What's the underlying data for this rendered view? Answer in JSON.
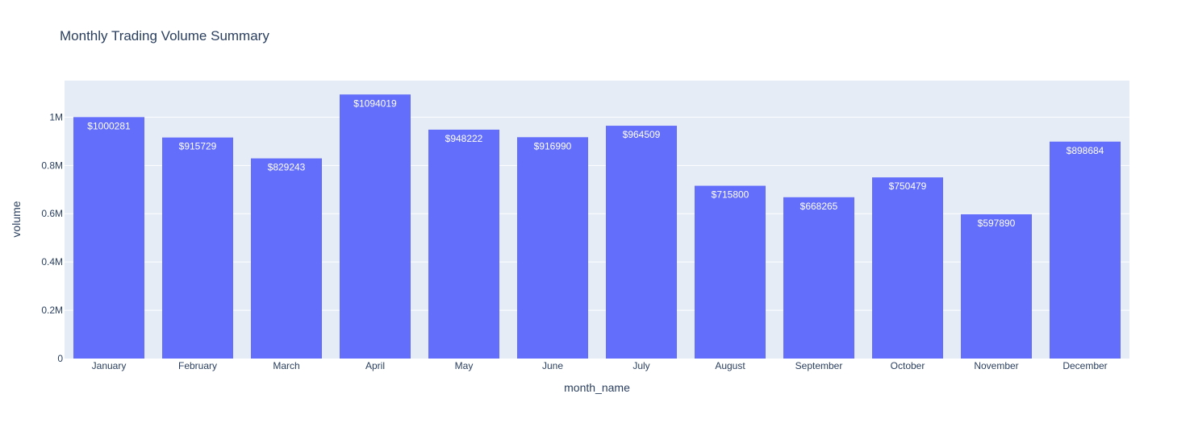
{
  "chart_data": {
    "type": "bar",
    "title": "Monthly Trading Volume Summary",
    "xlabel": "month_name",
    "ylabel": "volume",
    "categories": [
      "January",
      "February",
      "March",
      "April",
      "May",
      "June",
      "July",
      "August",
      "September",
      "October",
      "November",
      "December"
    ],
    "values": [
      1000281,
      915729,
      829243,
      1094019,
      948222,
      916990,
      964509,
      715800,
      668265,
      750479,
      597890,
      898684
    ],
    "data_labels": [
      "$1000281",
      "$915729",
      "$829243",
      "$1094019",
      "$948222",
      "$916990",
      "$964509",
      "$715800",
      "$668265",
      "$750479",
      "$597890",
      "$898684"
    ],
    "ylim": [
      0,
      1151599
    ],
    "yticks": [
      0,
      200000,
      400000,
      600000,
      800000,
      1000000
    ],
    "ytick_labels": [
      "0",
      "0.2M",
      "0.4M",
      "0.6M",
      "0.8M",
      "1M"
    ],
    "grid": true,
    "legend": "none",
    "colors": {
      "bar": "#636efa",
      "plot_background": "#e5ecf6",
      "grid": "#ffffff",
      "text": "#2a3f5f",
      "label": "#ffffff"
    }
  }
}
